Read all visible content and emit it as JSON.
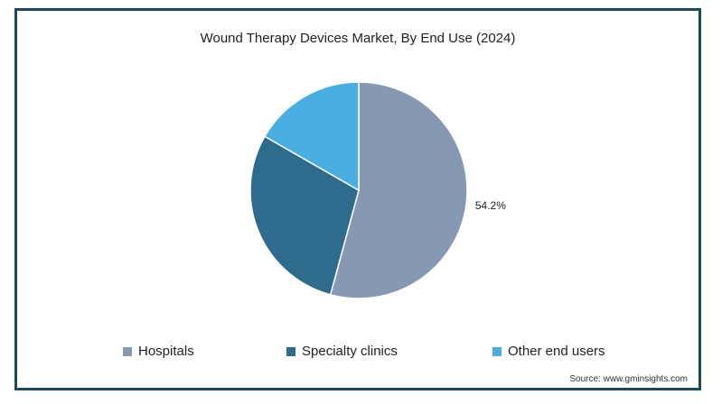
{
  "chart_data": {
    "type": "pie",
    "title": "Wound Therapy Devices Market, By End Use (2024)",
    "slices": [
      {
        "label": "Hospitals",
        "value": 54.2,
        "color": "#8799b2",
        "data_label": "54.2%"
      },
      {
        "label": "Specialty clinics",
        "value": 29.1,
        "color": "#2e6b8c",
        "data_label": ""
      },
      {
        "label": "Other end users",
        "value": 16.7,
        "color": "#4aaee0",
        "data_label": ""
      }
    ],
    "start_angle_deg": 0,
    "direction": "clockwise",
    "legend_position": "bottom"
  },
  "legend": {
    "items": [
      {
        "label": "Hospitals",
        "color": "#8799b2"
      },
      {
        "label": "Specialty clinics",
        "color": "#2e6b8c"
      },
      {
        "label": "Other end users",
        "color": "#4aaee0"
      }
    ]
  },
  "source": "Source: www.gminsights.com"
}
